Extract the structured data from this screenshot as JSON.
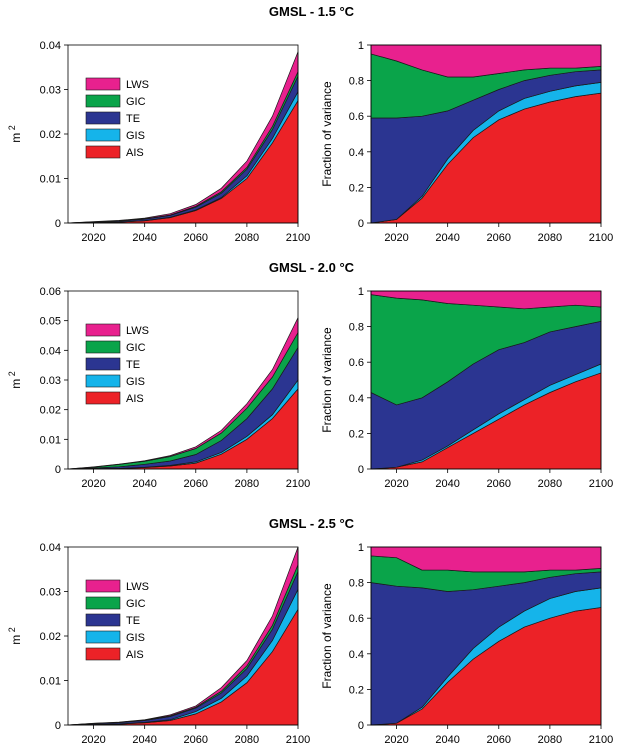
{
  "colors": {
    "LWS": "#e8218e",
    "GIC": "#0aa44a",
    "TE": "#2b3591",
    "GIS": "#15b4ea",
    "AIS": "#ec2227"
  },
  "rows": [
    {
      "title": "GMSL - 1.5 °C"
    },
    {
      "title": "GMSL - 2.0  °C"
    },
    {
      "title": "GMSL - 2.5 °C"
    }
  ],
  "chart_data": [
    {
      "type": "area",
      "stacked": true,
      "title": "",
      "xlabel": "",
      "ylabel": "m 2",
      "xlim": [
        2010,
        2100
      ],
      "ylim": [
        0,
        0.04
      ],
      "x": [
        2010,
        2020,
        2030,
        2040,
        2050,
        2060,
        2070,
        2080,
        2090,
        2100
      ],
      "xticks": [
        "2020",
        "2040",
        "2060",
        "2080",
        "2100"
      ],
      "yticks": [
        "0",
        "0.01",
        "0.02",
        "0.03",
        "0.04"
      ],
      "legend": "upper-left",
      "grid": false,
      "series": [
        {
          "name": "AIS",
          "values": [
            0,
            0.0001,
            0.0002,
            0.0005,
            0.0012,
            0.0028,
            0.0055,
            0.01,
            0.018,
            0.0275
          ]
        },
        {
          "name": "GIS",
          "values": [
            0,
            2e-05,
            3e-05,
            5e-05,
            0.0001,
            0.00015,
            0.0002,
            0.0006,
            0.001,
            0.002
          ]
        },
        {
          "name": "TE",
          "values": [
            0,
            0.0001,
            0.0002,
            0.0003,
            0.0004,
            0.0006,
            0.001,
            0.0015,
            0.002,
            0.0035
          ]
        },
        {
          "name": "GIC",
          "values": [
            0,
            5e-05,
            5e-05,
            0.0001,
            0.0001,
            0.0002,
            0.0003,
            0.0004,
            0.0007,
            0.001
          ]
        },
        {
          "name": "LWS",
          "values": [
            0,
            5e-05,
            0.0001,
            0.00015,
            0.0003,
            0.0004,
            0.0008,
            0.0014,
            0.0023,
            0.0045
          ]
        }
      ]
    },
    {
      "type": "area",
      "stacked": true,
      "title": "",
      "xlabel": "",
      "ylabel": "Fraction of variance",
      "xlim": [
        2010,
        2100
      ],
      "ylim": [
        0,
        1
      ],
      "x": [
        2010,
        2020,
        2030,
        2040,
        2050,
        2060,
        2070,
        2080,
        2090,
        2100
      ],
      "xticks": [
        "2020",
        "2040",
        "2060",
        "2080",
        "2100"
      ],
      "yticks": [
        "0",
        "0.2",
        "0.4",
        "0.6",
        "0.8",
        "1"
      ],
      "grid": false,
      "series": [
        {
          "name": "AIS",
          "values": [
            0,
            0.02,
            0.14,
            0.33,
            0.48,
            0.58,
            0.64,
            0.68,
            0.71,
            0.73
          ]
        },
        {
          "name": "GIS",
          "values": [
            0,
            0,
            0.01,
            0.03,
            0.04,
            0.05,
            0.06,
            0.06,
            0.06,
            0.06
          ]
        },
        {
          "name": "TE",
          "values": [
            0.59,
            0.57,
            0.45,
            0.27,
            0.17,
            0.12,
            0.1,
            0.09,
            0.08,
            0.07
          ]
        },
        {
          "name": "GIC",
          "values": [
            0.36,
            0.32,
            0.26,
            0.19,
            0.13,
            0.09,
            0.06,
            0.04,
            0.02,
            0.02
          ]
        },
        {
          "name": "LWS",
          "values": [
            0.05,
            0.09,
            0.14,
            0.18,
            0.18,
            0.16,
            0.14,
            0.13,
            0.13,
            0.12
          ]
        }
      ]
    },
    {
      "type": "area",
      "stacked": true,
      "title": "",
      "xlabel": "",
      "ylabel": "m 2",
      "xlim": [
        2010,
        2100
      ],
      "ylim": [
        0,
        0.06
      ],
      "x": [
        2010,
        2020,
        2030,
        2040,
        2050,
        2060,
        2070,
        2080,
        2090,
        2100
      ],
      "xticks": [
        "2020",
        "2040",
        "2060",
        "2080",
        "2100"
      ],
      "yticks": [
        "0",
        "0.01",
        "0.02",
        "0.03",
        "0.04",
        "0.05",
        "0.06"
      ],
      "legend": "upper-left",
      "grid": false,
      "series": [
        {
          "name": "AIS",
          "values": [
            0,
            0.0001,
            0.0002,
            0.0005,
            0.001,
            0.002,
            0.005,
            0.01,
            0.017,
            0.027
          ]
        },
        {
          "name": "GIS",
          "values": [
            0,
            5e-05,
            5e-05,
            0.0001,
            0.0002,
            0.0004,
            0.0006,
            0.001,
            0.0013,
            0.003
          ]
        },
        {
          "name": "TE",
          "values": [
            0,
            0.0002,
            0.0005,
            0.001,
            0.0015,
            0.0025,
            0.004,
            0.006,
            0.0087,
            0.011
          ]
        },
        {
          "name": "GIC",
          "values": [
            0,
            0.0003,
            0.0008,
            0.001,
            0.0015,
            0.002,
            0.0025,
            0.0035,
            0.004,
            0.005
          ]
        },
        {
          "name": "LWS",
          "values": [
            0,
            0.0001,
            0.0001,
            0.0002,
            0.0003,
            0.0006,
            0.0009,
            0.0015,
            0.0025,
            0.005
          ]
        }
      ]
    },
    {
      "type": "area",
      "stacked": true,
      "title": "",
      "xlabel": "",
      "ylabel": "Fraction of variance",
      "xlim": [
        2010,
        2100
      ],
      "ylim": [
        0,
        1
      ],
      "x": [
        2010,
        2020,
        2030,
        2040,
        2050,
        2060,
        2070,
        2080,
        2090,
        2100
      ],
      "xticks": [
        "2020",
        "2040",
        "2060",
        "2080",
        "2100"
      ],
      "yticks": [
        "0",
        "0.2",
        "0.4",
        "0.6",
        "0.8",
        "1"
      ],
      "grid": false,
      "series": [
        {
          "name": "AIS",
          "values": [
            0,
            0.01,
            0.04,
            0.12,
            0.2,
            0.28,
            0.36,
            0.43,
            0.49,
            0.54
          ]
        },
        {
          "name": "GIS",
          "values": [
            0,
            0,
            0.01,
            0.01,
            0.02,
            0.03,
            0.03,
            0.04,
            0.04,
            0.05
          ]
        },
        {
          "name": "TE",
          "values": [
            0.43,
            0.35,
            0.35,
            0.36,
            0.37,
            0.36,
            0.32,
            0.3,
            0.27,
            0.24
          ]
        },
        {
          "name": "GIC",
          "values": [
            0.55,
            0.6,
            0.55,
            0.44,
            0.33,
            0.24,
            0.19,
            0.14,
            0.12,
            0.08
          ]
        },
        {
          "name": "LWS",
          "values": [
            0.02,
            0.04,
            0.05,
            0.07,
            0.08,
            0.09,
            0.1,
            0.09,
            0.08,
            0.09
          ]
        }
      ]
    },
    {
      "type": "area",
      "stacked": true,
      "title": "",
      "xlabel": "",
      "ylabel": "m 2",
      "xlim": [
        2010,
        2100
      ],
      "ylim": [
        0,
        0.04
      ],
      "x": [
        2010,
        2020,
        2030,
        2040,
        2050,
        2060,
        2070,
        2080,
        2090,
        2100
      ],
      "xticks": [
        "2020",
        "2040",
        "2060",
        "2080",
        "2100"
      ],
      "yticks": [
        "0",
        "0.01",
        "0.02",
        "0.03",
        "0.04"
      ],
      "legend": "upper-left",
      "grid": false,
      "series": [
        {
          "name": "AIS",
          "values": [
            0,
            0.0001,
            0.0002,
            0.0005,
            0.001,
            0.0025,
            0.0052,
            0.0095,
            0.0165,
            0.026
          ]
        },
        {
          "name": "GIS",
          "values": [
            0,
            2e-05,
            5e-05,
            0.0001,
            0.0002,
            0.0005,
            0.0008,
            0.0015,
            0.0025,
            0.0045
          ]
        },
        {
          "name": "TE",
          "values": [
            0,
            0.0002,
            0.0003,
            0.0004,
            0.0007,
            0.0008,
            0.0012,
            0.0017,
            0.0025,
            0.004
          ]
        },
        {
          "name": "GIC",
          "values": [
            0,
            3e-05,
            5e-05,
            0.0001,
            0.0002,
            0.0002,
            0.0004,
            0.0006,
            0.0009,
            0.0015
          ]
        },
        {
          "name": "LWS",
          "values": [
            0,
            5e-05,
            5e-05,
            0.0001,
            0.0002,
            0.0003,
            0.0008,
            0.0012,
            0.0021,
            0.004
          ]
        }
      ]
    },
    {
      "type": "area",
      "stacked": true,
      "title": "",
      "xlabel": "",
      "ylabel": "Fraction of variance",
      "xlim": [
        2010,
        2100
      ],
      "ylim": [
        0,
        1
      ],
      "x": [
        2010,
        2020,
        2030,
        2040,
        2050,
        2060,
        2070,
        2080,
        2090,
        2100
      ],
      "xticks": [
        "2020",
        "2040",
        "2060",
        "2080",
        "2100"
      ],
      "yticks": [
        "0",
        "0.2",
        "0.4",
        "0.6",
        "0.8",
        "1"
      ],
      "grid": false,
      "series": [
        {
          "name": "AIS",
          "values": [
            0,
            0.01,
            0.09,
            0.24,
            0.37,
            0.47,
            0.55,
            0.6,
            0.64,
            0.66
          ]
        },
        {
          "name": "GIS",
          "values": [
            0,
            0,
            0.01,
            0.03,
            0.06,
            0.08,
            0.09,
            0.11,
            0.11,
            0.11
          ]
        },
        {
          "name": "TE",
          "values": [
            0.8,
            0.77,
            0.67,
            0.48,
            0.33,
            0.23,
            0.16,
            0.12,
            0.1,
            0.09
          ]
        },
        {
          "name": "GIC",
          "values": [
            0.15,
            0.16,
            0.1,
            0.12,
            0.1,
            0.08,
            0.06,
            0.04,
            0.02,
            0.02
          ]
        },
        {
          "name": "LWS",
          "values": [
            0.05,
            0.06,
            0.13,
            0.13,
            0.14,
            0.14,
            0.14,
            0.13,
            0.13,
            0.12
          ]
        }
      ]
    }
  ]
}
